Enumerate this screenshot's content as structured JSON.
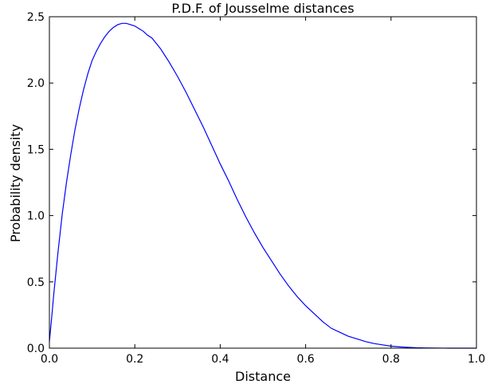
{
  "chart_data": {
    "type": "line",
    "title": "P.D.F. of Jousselme distances",
    "xlabel": "Distance",
    "ylabel": "Probability density",
    "xlim": [
      0.0,
      1.0
    ],
    "ylim": [
      0.0,
      2.5
    ],
    "grid": false,
    "x_ticks": [
      "0.0",
      "0.2",
      "0.4",
      "0.6",
      "0.8",
      "1.0"
    ],
    "y_ticks": [
      "0.0",
      "0.5",
      "1.0",
      "1.5",
      "2.0",
      "2.5"
    ],
    "series": [
      {
        "color": "#0000ff",
        "x": [
          0.0,
          0.005,
          0.01,
          0.02,
          0.03,
          0.04,
          0.05,
          0.06,
          0.07,
          0.08,
          0.09,
          0.1,
          0.11,
          0.12,
          0.13,
          0.14,
          0.15,
          0.16,
          0.17,
          0.18,
          0.19,
          0.2,
          0.21,
          0.22,
          0.23,
          0.24,
          0.25,
          0.26,
          0.27,
          0.28,
          0.3,
          0.32,
          0.34,
          0.36,
          0.38,
          0.4,
          0.42,
          0.44,
          0.46,
          0.48,
          0.5,
          0.52,
          0.54,
          0.56,
          0.58,
          0.6,
          0.62,
          0.64,
          0.66,
          0.68,
          0.7,
          0.72,
          0.74,
          0.76,
          0.78,
          0.8,
          0.82,
          0.84,
          0.86,
          0.88,
          0.9,
          0.92,
          0.94,
          0.96,
          0.98,
          1.0
        ],
        "y": [
          0.05,
          0.22,
          0.4,
          0.72,
          1.01,
          1.25,
          1.46,
          1.65,
          1.81,
          1.95,
          2.07,
          2.17,
          2.24,
          2.3,
          2.35,
          2.39,
          2.42,
          2.44,
          2.45,
          2.45,
          2.44,
          2.43,
          2.41,
          2.39,
          2.36,
          2.34,
          2.3,
          2.26,
          2.21,
          2.16,
          2.05,
          1.93,
          1.8,
          1.67,
          1.53,
          1.39,
          1.26,
          1.12,
          0.99,
          0.87,
          0.76,
          0.66,
          0.56,
          0.47,
          0.39,
          0.32,
          0.26,
          0.2,
          0.15,
          0.12,
          0.09,
          0.07,
          0.05,
          0.035,
          0.025,
          0.015,
          0.01,
          0.006,
          0.003,
          0.002,
          0.001,
          0.0005,
          0.0002,
          0.0001,
          0.0,
          0.0
        ]
      }
    ]
  }
}
